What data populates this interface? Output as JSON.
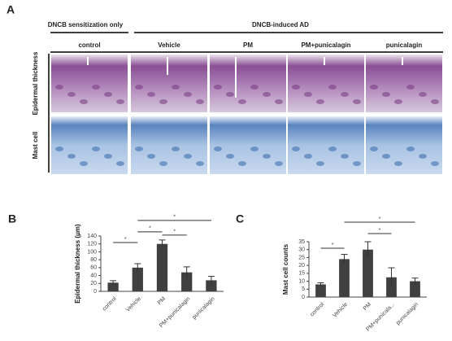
{
  "panel_a": {
    "label": "A",
    "groups": [
      "DNCB sensitization only",
      "DNCB-induced AD"
    ],
    "columns": [
      "control",
      "Vehicle",
      "PM",
      "PM+punicalagin",
      "punicalagin"
    ],
    "rows": [
      "Epidermal thickness",
      "Mast cell"
    ]
  },
  "chart_data": [
    {
      "type": "bar",
      "panel": "B",
      "ylabel": "Epidermal thickness (μm)",
      "categories": [
        "control",
        "Vehicle",
        "PM",
        "PM+punicalagin",
        "punicalagin"
      ],
      "values": [
        22,
        60,
        120,
        48,
        28
      ],
      "errors": [
        5,
        10,
        10,
        14,
        10
      ],
      "color": "#404040",
      "ylim": [
        0,
        140
      ],
      "yticks": [
        0,
        20,
        40,
        60,
        80,
        100,
        120,
        140
      ],
      "significance": [
        {
          "between": [
            "control",
            "Vehicle"
          ],
          "text": "*"
        },
        {
          "between": [
            "Vehicle",
            "PM"
          ],
          "text": "*"
        },
        {
          "between": [
            "PM",
            "PM+punicalagin"
          ],
          "text": "*"
        },
        {
          "between": [
            "Vehicle",
            "punicalagin"
          ],
          "text": "*"
        }
      ]
    },
    {
      "type": "bar",
      "panel": "C",
      "ylabel": "Mast cell counts",
      "categories": [
        "control",
        "Vehicle",
        "PM",
        "PM+punicala...",
        "punicalagin"
      ],
      "values": [
        8,
        24,
        30,
        12.5,
        10
      ],
      "errors": [
        1,
        3,
        5,
        6,
        2
      ],
      "color": "#404040",
      "ylim": [
        0,
        35
      ],
      "yticks": [
        0,
        5,
        10,
        15,
        20,
        25,
        30,
        35
      ],
      "significance": [
        {
          "between": [
            "control",
            "Vehicle"
          ],
          "text": "*"
        },
        {
          "between": [
            "PM",
            "PM+punicala..."
          ],
          "text": "*"
        },
        {
          "between": [
            "Vehicle",
            "punicalagin"
          ],
          "text": "*"
        }
      ]
    }
  ]
}
